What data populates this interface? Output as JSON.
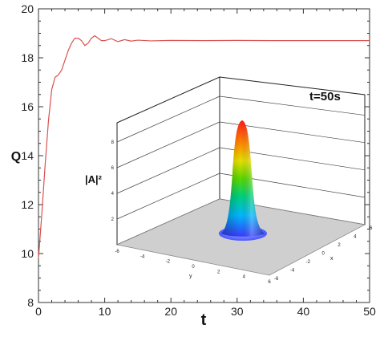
{
  "chart_data": {
    "type": "line",
    "xlabel": "t",
    "ylabel": "Q",
    "xlim": [
      0,
      50
    ],
    "ylim": [
      8,
      20
    ],
    "xticks": [
      "0",
      "10",
      "20",
      "30",
      "40",
      "50"
    ],
    "yticks": [
      "8",
      "10",
      "12",
      "14",
      "16",
      "18",
      "20"
    ],
    "grid": false,
    "series": [
      {
        "color": "#d9534f",
        "x": [
          0,
          0.5,
          1,
          1.5,
          2,
          2.5,
          3,
          3.5,
          4,
          4.5,
          5,
          5.5,
          6,
          6.5,
          7,
          7.5,
          8,
          8.5,
          9,
          9.5,
          10,
          11,
          12,
          13,
          14,
          15,
          17,
          20,
          25,
          30,
          35,
          40,
          45,
          50
        ],
        "y": [
          9.8,
          11.6,
          13.6,
          15.4,
          16.7,
          17.2,
          17.3,
          17.5,
          17.9,
          18.3,
          18.6,
          18.8,
          18.8,
          18.7,
          18.5,
          18.6,
          18.8,
          18.9,
          18.8,
          18.7,
          18.7,
          18.78,
          18.66,
          18.74,
          18.68,
          18.72,
          18.69,
          18.71,
          18.7,
          18.71,
          18.7,
          18.7,
          18.7,
          18.7
        ]
      }
    ],
    "annotation": "t=50s",
    "inset": {
      "type": "surface",
      "zlabel": "|A|²",
      "xlabel": "x",
      "ylabel": "y",
      "zticks": [
        "2",
        "4",
        "6",
        "8"
      ],
      "xticks": [
        "-6",
        "-4",
        "-2",
        "0",
        "2",
        "4",
        "6"
      ],
      "yticks": [
        "-6",
        "-4",
        "-2",
        "0",
        "2",
        "4",
        "6"
      ],
      "peak_value": 9
    }
  }
}
